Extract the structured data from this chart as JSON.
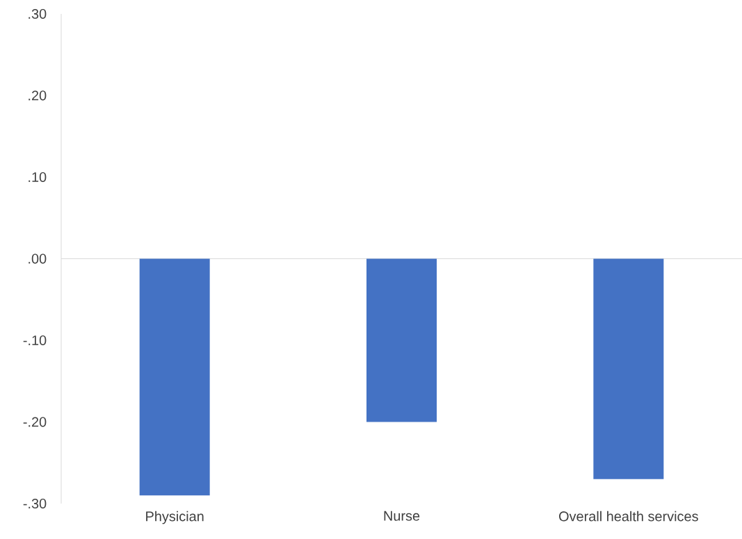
{
  "chart_data": {
    "type": "bar",
    "categories": [
      "Physician",
      "Nurse",
      "Overall health services"
    ],
    "values": [
      -0.29,
      -0.2,
      -0.27
    ],
    "color": "#4472c4",
    "ylim": [
      -0.3,
      0.3
    ],
    "yticks": [
      {
        "value": -0.3,
        "label": "-.30"
      },
      {
        "value": -0.2,
        "label": "-.20"
      },
      {
        "value": -0.1,
        "label": "-.10"
      },
      {
        "value": 0,
        "label": ".00"
      },
      {
        "value": 0.1,
        "label": ".10"
      },
      {
        "value": 0.2,
        "label": ".20"
      },
      {
        "value": 0.3,
        "label": ".30"
      }
    ],
    "ref_lines": [
      {
        "axis": "y",
        "value": 0,
        "color": "#d9d9d9"
      }
    ]
  }
}
